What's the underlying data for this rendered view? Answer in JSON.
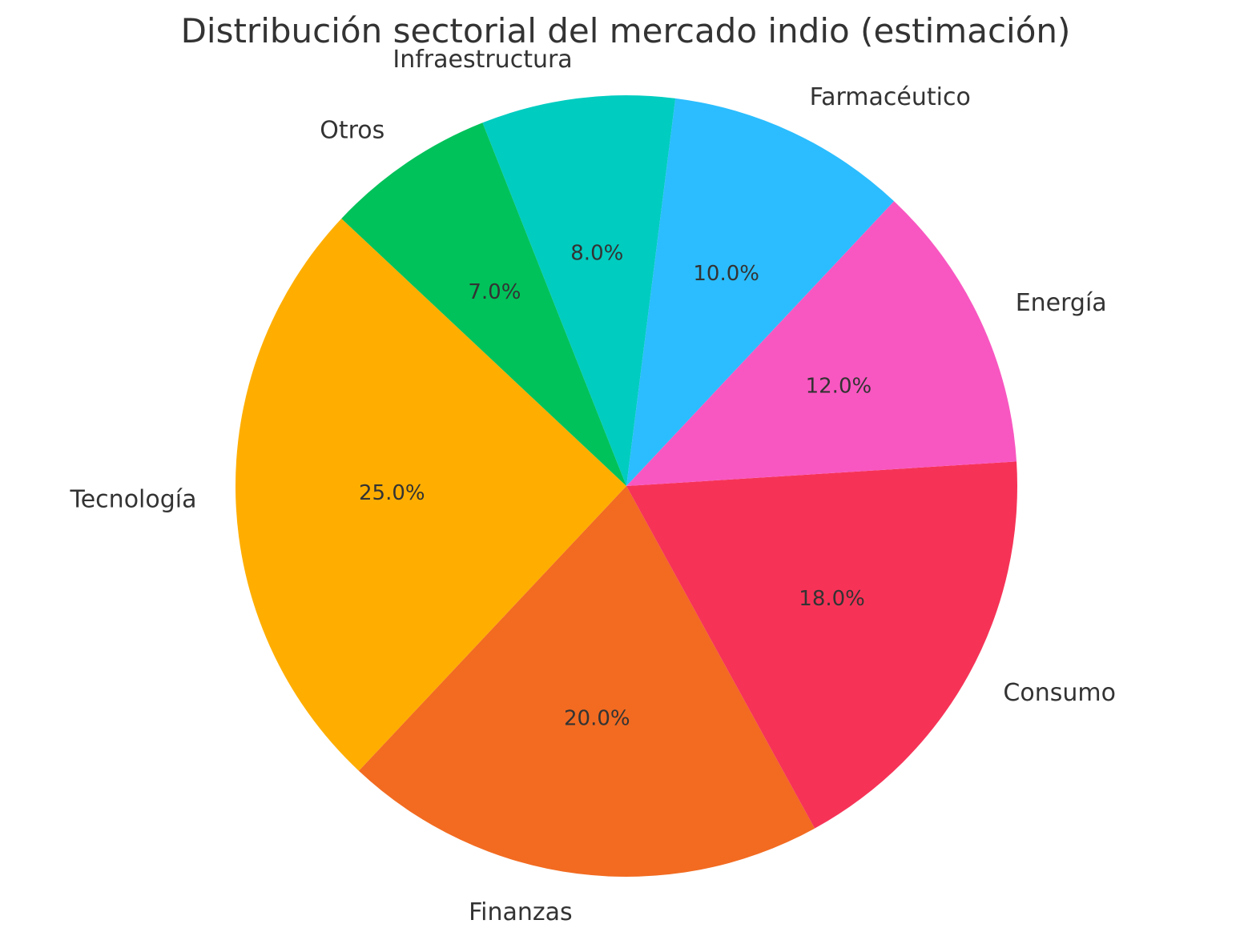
{
  "chart_data": {
    "type": "pie",
    "title": "Distribución sectorial del mercado indio (estimación)",
    "categories": [
      "Tecnología",
      "Finanzas",
      "Consumo",
      "Energía",
      "Farmacéutico",
      "Infraestructura",
      "Otros"
    ],
    "values": [
      25.0,
      20.0,
      18.0,
      12.0,
      10.0,
      8.0,
      7.0
    ],
    "value_labels": [
      "25.0%",
      "20.0%",
      "18.0%",
      "12.0%",
      "10.0%",
      "8.0%",
      "7.0%"
    ],
    "colors": [
      "#FFAE00",
      "#F26B21",
      "#F63357",
      "#F857C1",
      "#2BBDFF",
      "#00CCC0",
      "#00C25A"
    ],
    "start_angle_deg": 136.8,
    "direction": "counterclockwise",
    "legend": "none"
  }
}
